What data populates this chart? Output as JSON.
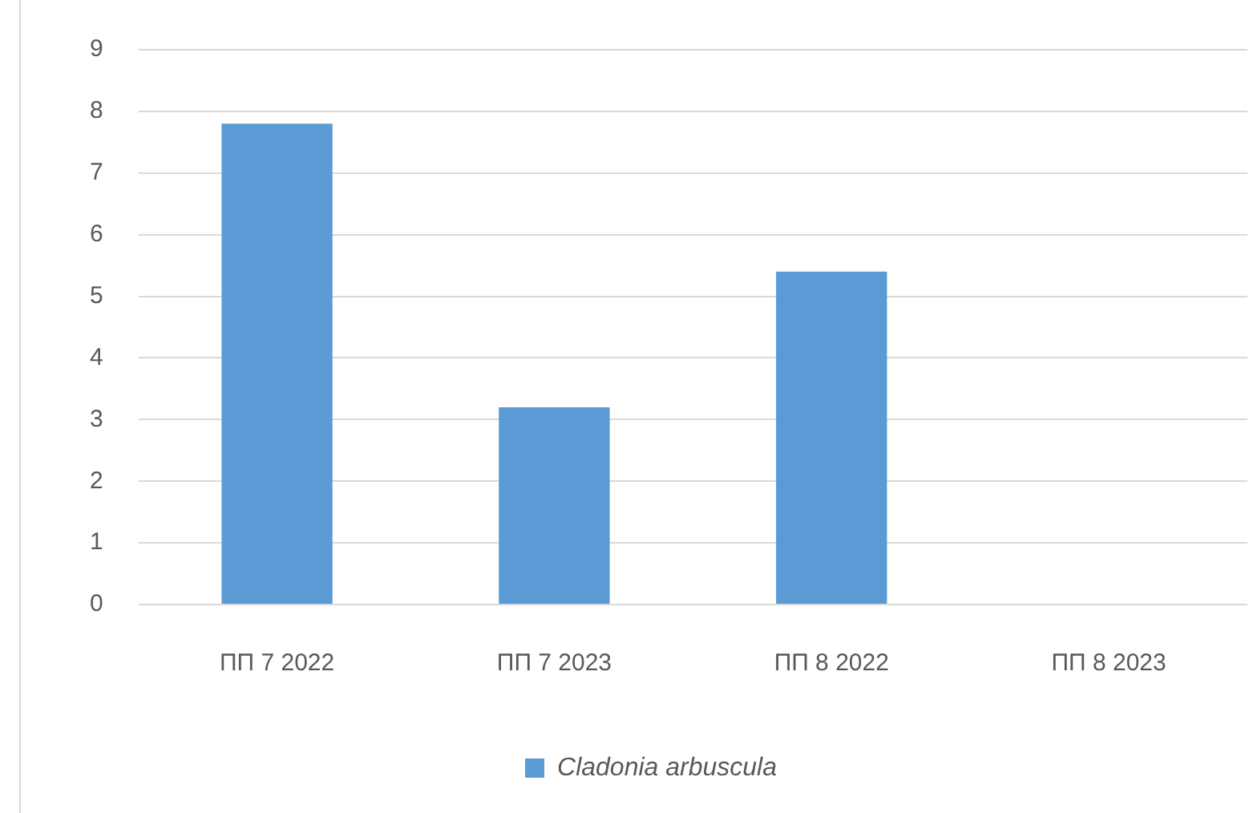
{
  "chart_data": {
    "type": "bar",
    "categories": [
      "ПП 7 2022",
      "ПП 7 2023",
      "ПП 8 2022",
      "ПП 8 2023"
    ],
    "series": [
      {
        "name": "Cladonia arbuscula",
        "color": "#5b9bd5",
        "values": [
          7.8,
          3.2,
          5.4,
          0
        ]
      }
    ],
    "ylim": [
      0,
      9
    ],
    "yticks": [
      0,
      1,
      2,
      3,
      4,
      5,
      6,
      7,
      8,
      9
    ],
    "grid": "y",
    "legend": "bottom"
  }
}
